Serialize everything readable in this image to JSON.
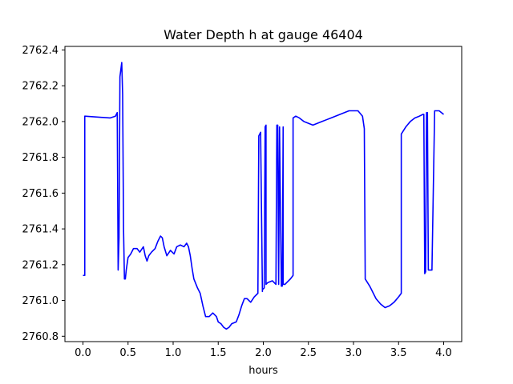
{
  "chart_data": {
    "type": "line",
    "title": "Water Depth h at gauge 46404",
    "xlabel": "hours",
    "ylabel": "",
    "xlim": [
      -0.2,
      4.2
    ],
    "ylim": [
      2760.77,
      2762.42
    ],
    "x_ticks": [
      0.0,
      0.5,
      1.0,
      1.5,
      2.0,
      2.5,
      3.0,
      3.5,
      4.0
    ],
    "x_tick_labels": [
      "0.0",
      "0.5",
      "1.0",
      "1.5",
      "2.0",
      "2.5",
      "3.0",
      "3.5",
      "4.0"
    ],
    "y_ticks": [
      2760.8,
      2761.0,
      2761.2,
      2761.4,
      2761.6,
      2761.8,
      2762.0,
      2762.2,
      2762.4
    ],
    "y_tick_labels": [
      "2760.8",
      "2761.0",
      "2761.2",
      "2761.4",
      "2761.6",
      "2761.8",
      "2762.0",
      "2762.2",
      "2762.4"
    ],
    "grid": false,
    "series": [
      {
        "color": "#0000ff",
        "x": [
          0.0,
          0.02,
          0.02,
          0.3,
          0.36,
          0.38,
          0.39,
          0.4,
          0.41,
          0.43,
          0.44,
          0.45,
          0.46,
          0.47,
          0.48,
          0.5,
          0.53,
          0.56,
          0.6,
          0.63,
          0.67,
          0.69,
          0.71,
          0.73,
          0.76,
          0.8,
          0.83,
          0.86,
          0.88,
          0.9,
          0.93,
          0.97,
          1.01,
          1.04,
          1.08,
          1.12,
          1.15,
          1.17,
          1.19,
          1.21,
          1.23,
          1.27,
          1.3,
          1.33,
          1.36,
          1.4,
          1.44,
          1.48,
          1.5,
          1.53,
          1.56,
          1.59,
          1.62,
          1.65,
          1.7,
          1.73,
          1.76,
          1.79,
          1.82,
          1.86,
          1.9,
          1.94,
          1.95,
          1.97,
          1.99,
          1.99,
          2.01,
          2.02,
          2.03,
          2.03,
          2.05,
          2.1,
          2.14,
          2.15,
          2.16,
          2.17,
          2.18,
          2.2,
          2.21,
          2.22,
          2.22,
          2.24,
          2.3,
          2.33,
          2.33,
          2.36,
          2.4,
          2.45,
          2.5,
          2.55,
          2.6,
          2.65,
          2.7,
          2.75,
          2.8,
          2.85,
          2.9,
          2.95,
          3.0,
          3.05,
          3.1,
          3.12,
          3.13,
          3.13,
          3.18,
          3.25,
          3.3,
          3.35,
          3.4,
          3.45,
          3.5,
          3.53,
          3.53,
          3.58,
          3.63,
          3.68,
          3.73,
          3.77,
          3.78,
          3.79,
          3.8,
          3.81,
          3.82,
          3.83,
          3.83,
          3.87,
          3.87,
          3.9,
          3.95,
          4.0
        ],
        "y": [
          2761.14,
          2761.14,
          2762.03,
          2762.02,
          2762.03,
          2762.05,
          2761.17,
          2761.35,
          2762.25,
          2762.33,
          2762.15,
          2761.4,
          2761.12,
          2761.12,
          2761.17,
          2761.24,
          2761.26,
          2761.29,
          2761.29,
          2761.27,
          2761.3,
          2761.25,
          2761.22,
          2761.25,
          2761.27,
          2761.29,
          2761.33,
          2761.36,
          2761.35,
          2761.3,
          2761.25,
          2761.28,
          2761.26,
          2761.3,
          2761.31,
          2761.3,
          2761.32,
          2761.3,
          2761.25,
          2761.18,
          2761.12,
          2761.07,
          2761.04,
          2760.97,
          2760.91,
          2760.91,
          2760.93,
          2760.91,
          2760.88,
          2760.87,
          2760.85,
          2760.84,
          2760.85,
          2760.87,
          2760.88,
          2760.92,
          2760.97,
          2761.01,
          2761.01,
          2760.99,
          2761.02,
          2761.04,
          2761.92,
          2761.94,
          2761.05,
          2761.06,
          2761.07,
          2761.97,
          2761.98,
          2761.09,
          2761.1,
          2761.11,
          2761.09,
          2761.98,
          2761.98,
          2761.09,
          2761.97,
          2761.08,
          2761.08,
          2761.97,
          2761.09,
          2761.09,
          2761.12,
          2761.14,
          2762.02,
          2762.03,
          2762.02,
          2762.0,
          2761.99,
          2761.98,
          2761.99,
          2762.0,
          2762.01,
          2762.02,
          2762.03,
          2762.04,
          2762.05,
          2762.06,
          2762.06,
          2762.06,
          2762.03,
          2761.96,
          2761.13,
          2761.12,
          2761.08,
          2761.01,
          2760.98,
          2760.96,
          2760.97,
          2760.99,
          2761.02,
          2761.04,
          2761.93,
          2761.97,
          2762.0,
          2762.02,
          2762.03,
          2762.04,
          2762.04,
          2761.15,
          2761.16,
          2762.05,
          2762.05,
          2761.17,
          2761.17,
          2761.17,
          2761.17,
          2762.06,
          2762.06,
          2762.04
        ]
      }
    ]
  }
}
